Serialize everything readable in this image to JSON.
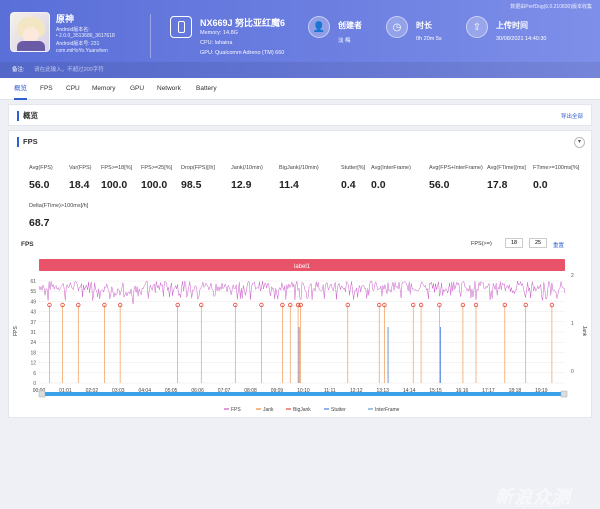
{
  "header": {
    "app": {
      "name": "原神",
      "lines": [
        "Android版本名:",
        "• 2.0.0_3513686_3617618",
        "Android版本号: 231",
        "com.miHoYo.Yuanshen"
      ]
    },
    "device": {
      "name": "NX669J 努比亚红魔6",
      "lines": [
        "Memory: 14.8G",
        "CPU: lahaina",
        "GPU: Qualcomm Adreno (TM) 660"
      ]
    },
    "stats": [
      {
        "label": "创建者",
        "value": "淡 梅",
        "icon": "user-icon"
      },
      {
        "label": "时长",
        "value": "0h 20m 5s",
        "icon": "clock-icon"
      },
      {
        "label": "上传时间",
        "value": "30/08/2021 14:40:30",
        "icon": "upload-icon"
      }
    ],
    "top_note": "数据由PerfDog(6.0.210830)版本收集",
    "note_label": "备注:",
    "note_placeholder": "请在此输入，不超过200字符"
  },
  "tabs": [
    "概览",
    "FPS",
    "CPU",
    "Memory",
    "GPU",
    "Network",
    "Battery"
  ],
  "overview": {
    "title": "概览",
    "export": "导出全部"
  },
  "fps_panel": {
    "title": "FPS",
    "collapse_glyph": "▾",
    "metrics": [
      {
        "label": "Avg(FPS)",
        "value": "56.0"
      },
      {
        "label": "Var(FPS)",
        "value": "18.4"
      },
      {
        "label": "FPS>=18[%]",
        "value": "100.0"
      },
      {
        "label": "FPS>=25[%]",
        "value": "100.0"
      },
      {
        "label": "Drop(FPS)[/h]",
        "value": "98.5"
      },
      {
        "label": "Jank(/10min)",
        "value": "12.9"
      },
      {
        "label": "BigJank(/10min)",
        "value": "11.4"
      },
      {
        "label": "Stutter[%]",
        "value": "0.4"
      },
      {
        "label": "Avg(InterFrame)",
        "value": "0.0"
      },
      {
        "label": "Avg(FPS+InterFrame)",
        "value": "56.0"
      },
      {
        "label": "Avg(FTime)[ms]",
        "value": "17.8"
      },
      {
        "label": "FTime>=100ms[%]",
        "value": "0.0"
      },
      {
        "label": "Delta(FTime)>100ms[/h]",
        "value": "68.7"
      }
    ],
    "chart_title": "FPS",
    "fps_ctrl_label": "FPS(>=)",
    "fps_threshold_1": "18",
    "fps_threshold_2": "25",
    "reset": "重置",
    "label_bar": "label1"
  },
  "chart_data": {
    "type": "line",
    "y_left_label": "FPS",
    "y_right_label": "Jank",
    "y_left_ticks": [
      "61",
      "55",
      "49",
      "43",
      "37",
      "31",
      "24",
      "18",
      "12",
      "6",
      "0"
    ],
    "y_right_ticks": [
      "2",
      "1",
      "0"
    ],
    "x_ticks": [
      "00:00",
      "01:01",
      "02:02",
      "03:03",
      "04:04",
      "05:05",
      "06:06",
      "07:07",
      "08:08",
      "09:09",
      "10:10",
      "11:11",
      "12:12",
      "13:13",
      "14:14",
      "15:15",
      "16:16",
      "17:17",
      "18:18",
      "19:19"
    ],
    "legend": [
      {
        "name": "FPS",
        "color": "#c85ac8"
      },
      {
        "name": "Jank",
        "color": "#f08a3c"
      },
      {
        "name": "BigJank",
        "color": "#e8463c"
      },
      {
        "name": "Stutter",
        "color": "#4a7ee0"
      },
      {
        "name": "InterFrame",
        "color": "#5aa0d0"
      }
    ],
    "bigjank_minutes": [
      0.4,
      0.9,
      1.5,
      2.5,
      3.1,
      5.3,
      6.2,
      7.5,
      8.5,
      9.3,
      9.6,
      9.9,
      10.0,
      11.8,
      13.0,
      13.2,
      14.3,
      14.6,
      15.3,
      16.2,
      16.7,
      17.8,
      18.6,
      19.6
    ],
    "stutter_minutes": [
      9.9,
      13.3,
      15.3
    ]
  },
  "watermark": {
    "main": "新浪众测",
    "sub": "ZHONGCE.SINA"
  }
}
